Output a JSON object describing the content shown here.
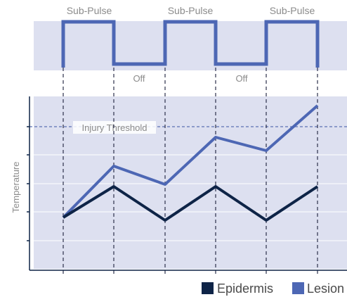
{
  "diagram": {
    "pulse_labels": {
      "pulse1": "Sub-Pulse",
      "pulse2": "Sub-Pulse",
      "pulse3": "Sub-Pulse",
      "off1": "Off",
      "off2": "Off"
    },
    "threshold_label": "Injury Threshold",
    "y_axis_label": "Temperature",
    "legend": {
      "epidermis": "Epidermis",
      "lesion": "Lesion"
    }
  },
  "colors": {
    "background_panel": "#dde0f0",
    "lesion": "#4d67b4",
    "epidermis": "#0e2447",
    "dashed": "#2b2f4a",
    "threshold": "#5b6fb3",
    "label_text": "#8b8b8b"
  }
}
